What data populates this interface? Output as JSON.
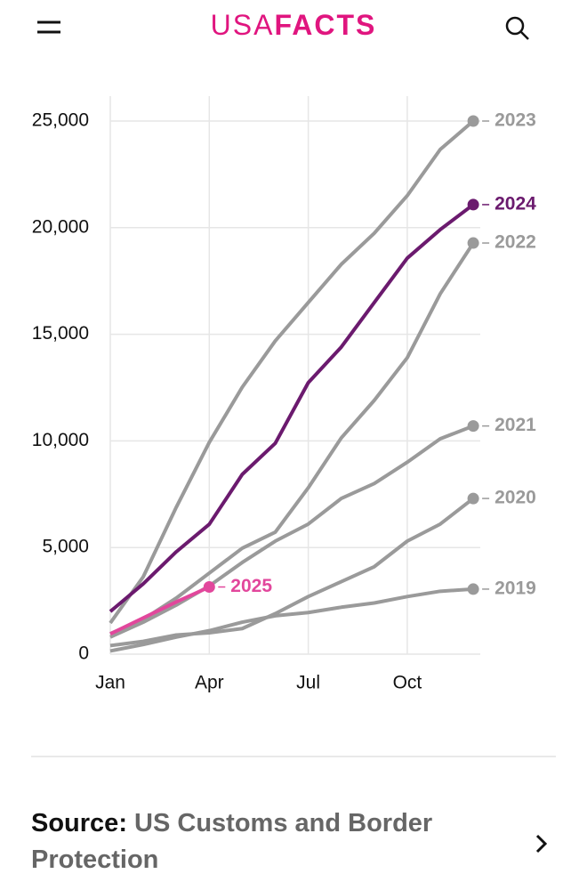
{
  "header": {
    "logo_left": "USA",
    "logo_right": "FACTS"
  },
  "chart_data": {
    "type": "line",
    "categories": [
      "Jan",
      null,
      null,
      "Apr",
      null,
      null,
      "Jul",
      null,
      null,
      "Oct",
      null,
      null
    ],
    "ylim": [
      0,
      25000
    ],
    "yticks": [
      0,
      {
        "value": 5000,
        "label": "5,000"
      },
      {
        "value": 10000,
        "label": "10,000"
      },
      {
        "value": 15000,
        "label": "15,000"
      },
      {
        "value": 20000,
        "label": "20,000"
      },
      {
        "value": 25000,
        "label": "25,000"
      }
    ],
    "grid": true,
    "series": [
      {
        "name": "2019",
        "color": "#9a9a9a",
        "values": [
          150,
          450,
          800,
          1100,
          1500,
          1800,
          1950,
          2200,
          2400,
          2700,
          2950,
          3050
        ]
      },
      {
        "name": "2020",
        "color": "#9a9a9a",
        "values": [
          400,
          600,
          900,
          1000,
          1200,
          1900,
          2700,
          3400,
          4100,
          5300,
          6100,
          7300
        ]
      },
      {
        "name": "2021",
        "color": "#9a9a9a",
        "values": [
          800,
          1500,
          2300,
          3200,
          4300,
          5300,
          6100,
          7300,
          8000,
          9000,
          10100,
          10700
        ]
      },
      {
        "name": "2022",
        "color": "#9a9a9a",
        "values": [
          960,
          1630,
          2630,
          3800,
          4970,
          5720,
          7800,
          10140,
          11900,
          13900,
          16900,
          19280
        ]
      },
      {
        "name": "2023",
        "color": "#9a9a9a",
        "values": [
          1460,
          3630,
          6890,
          9930,
          12520,
          14690,
          16490,
          18280,
          19740,
          21500,
          23670,
          25000
        ]
      },
      {
        "name": "2024",
        "color": "#6b1a6e",
        "values": [
          2000,
          3300,
          4800,
          6090,
          8430,
          9890,
          12730,
          14400,
          16490,
          18570,
          19910,
          21080
        ]
      },
      {
        "name": "2025",
        "color": "#e2479c",
        "values": [
          950,
          1700,
          2450,
          3150,
          null,
          null,
          null,
          null,
          null,
          null,
          null,
          null
        ]
      }
    ]
  },
  "source": {
    "label": "Source:",
    "text": "US Customs and Border Protection"
  }
}
